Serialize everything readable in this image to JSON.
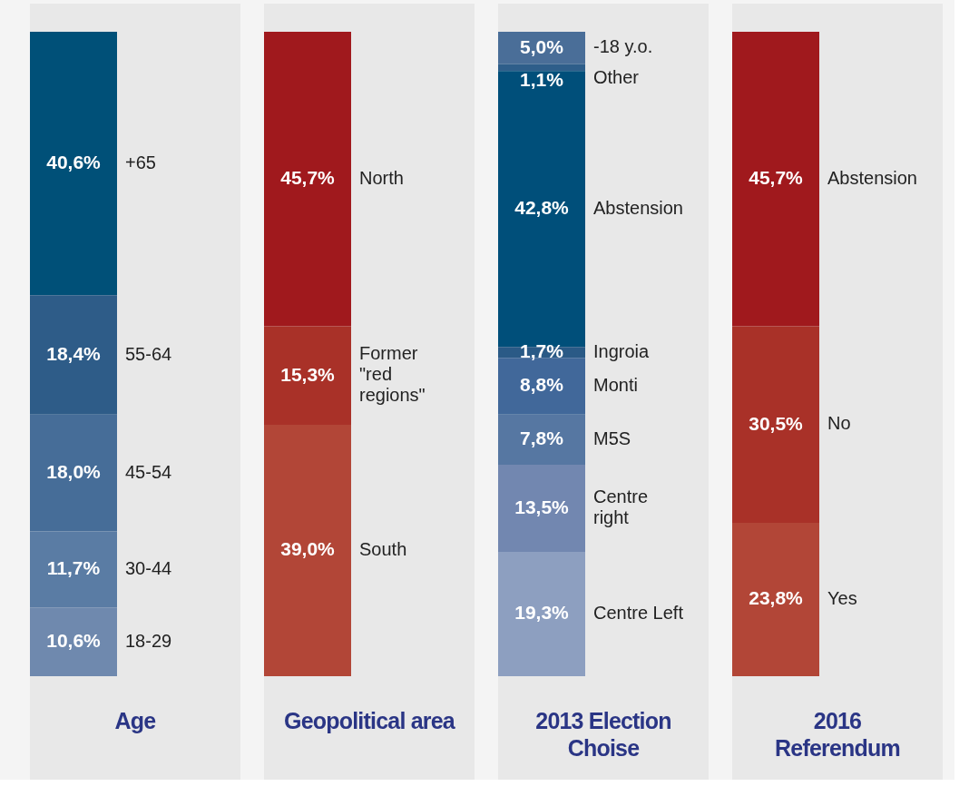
{
  "chart_data": [
    {
      "type": "bar",
      "title": "Age",
      "categories": [
        null
      ],
      "stacked": true,
      "series": [
        {
          "name": "18-29",
          "color": "#6f89ae",
          "values": [
            10.6
          ],
          "value_labels": [
            "10,6%"
          ]
        },
        {
          "name": "30-44",
          "color": "#5a7ca4",
          "values": [
            11.7
          ],
          "value_labels": [
            "11,7%"
          ]
        },
        {
          "name": "45-54",
          "color": "#466d98",
          "values": [
            18.0
          ],
          "value_labels": [
            "18,0%"
          ]
        },
        {
          "name": "55-64",
          "color": "#2e5c88",
          "values": [
            18.4
          ],
          "value_labels": [
            "18,4%"
          ]
        },
        {
          "name": "+65",
          "color": "#005078",
          "values": [
            40.6
          ],
          "value_labels": [
            "40,6%"
          ]
        }
      ]
    },
    {
      "type": "bar",
      "title": "Geopolitical area",
      "categories": [
        null
      ],
      "stacked": true,
      "series": [
        {
          "name": "South",
          "color": "#b24637",
          "values": [
            39.0
          ],
          "value_labels": [
            "39,0%"
          ]
        },
        {
          "name": "Former \"red regions\"",
          "color": "#a93128",
          "values": [
            15.3
          ],
          "value_labels": [
            "15,3%"
          ]
        },
        {
          "name": "North",
          "color": "#a0191d",
          "values": [
            45.7
          ],
          "value_labels": [
            "45,7%"
          ]
        }
      ]
    },
    {
      "type": "bar",
      "title": "2013 Election Choise",
      "categories": [
        null
      ],
      "stacked": true,
      "series": [
        {
          "name": "Centre Left",
          "color": "#8d9fc0",
          "values": [
            19.3
          ],
          "value_labels": [
            "19,3%"
          ]
        },
        {
          "name": "Centre right",
          "color": "#7287b0",
          "values": [
            13.5
          ],
          "value_labels": [
            "13,5%"
          ]
        },
        {
          "name": "M5S",
          "color": "#5677a2",
          "values": [
            7.8
          ],
          "value_labels": [
            "7,8%"
          ]
        },
        {
          "name": "Monti",
          "color": "#41689a",
          "values": [
            8.8
          ],
          "value_labels": [
            "8,8%"
          ]
        },
        {
          "name": "Ingroia",
          "color": "#2a5a86",
          "values": [
            1.7
          ],
          "value_labels": [
            "1,7%"
          ]
        },
        {
          "name": "Abstension",
          "color": "#004f7a",
          "values": [
            42.8
          ],
          "value_labels": [
            "42,8%"
          ]
        },
        {
          "name": "Other",
          "color": "#2e5e8a",
          "values": [
            1.1
          ],
          "value_labels": [
            "1,1%"
          ]
        },
        {
          "name": "-18 y.o.",
          "color": "#4a6e98",
          "values": [
            5.0
          ],
          "value_labels": [
            "5,0%"
          ]
        }
      ]
    },
    {
      "type": "bar",
      "title": "2016 Referendum",
      "categories": [
        null
      ],
      "stacked": true,
      "series": [
        {
          "name": "Yes",
          "color": "#b24637",
          "values": [
            23.8
          ],
          "value_labels": [
            "23,8%"
          ]
        },
        {
          "name": "No",
          "color": "#a93128",
          "values": [
            30.5
          ],
          "value_labels": [
            "30,5%"
          ]
        },
        {
          "name": "Abstension",
          "color": "#a0191d",
          "values": [
            45.7
          ],
          "value_labels": [
            "45,7%"
          ]
        }
      ]
    }
  ]
}
